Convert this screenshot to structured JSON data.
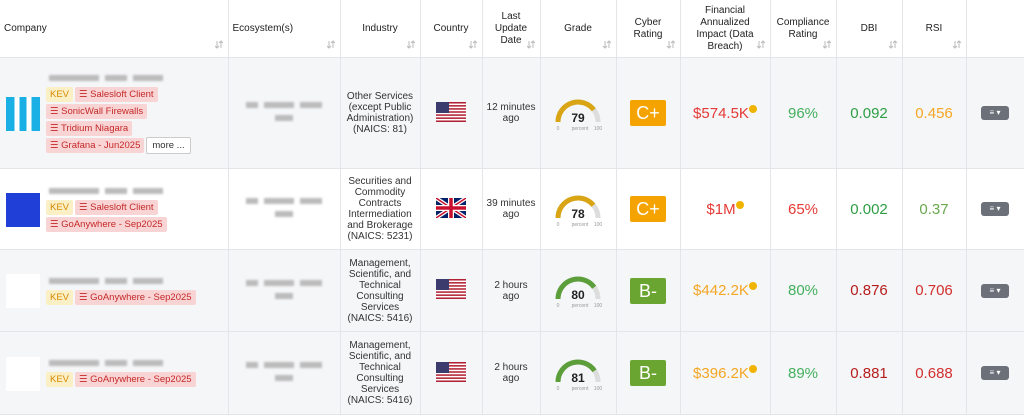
{
  "header": {
    "columns": [
      "Company",
      "Ecosystem(s)",
      "Industry",
      "Country",
      "Last Update Date",
      "Grade",
      "Cyber Rating",
      "Financial Annualized Impact (Data Breach)",
      "Compliance Rating",
      "DBI",
      "RSI"
    ]
  },
  "gauge": {
    "min": 0,
    "label": "percent",
    "max": 100
  },
  "table": {
    "rows": [
      {
        "kev": "KEV",
        "tags": [
          "Salesloft Client",
          "SonicWall Firewalls",
          "Tridium Niagara",
          "Grafana - Jun2025"
        ],
        "more": "more ...",
        "industry": "Other Services (except Public Administration) (NAICS: 81)",
        "updated": "12 minutes ago",
        "grade": 79,
        "grade_color": "#d9a514",
        "rating": "C+",
        "rating_color": "#f5a300",
        "impact": "$574.5K",
        "impact_color": "#e53935",
        "compliance": "96%",
        "compliance_color": "#43b05c",
        "dbi": "0.092",
        "dbi_color": "#2e9e44",
        "rsi": "0.456",
        "rsi_color": "#f5a623"
      },
      {
        "kev": "KEV",
        "tags": [
          "Salesloft Client",
          "GoAnywhere - Sep2025"
        ],
        "industry": "Securities and Commodity Contracts Intermediation and Brokerage (NAICS: 5231)",
        "updated": "39 minutes ago",
        "grade": 78,
        "grade_color": "#d9a514",
        "rating": "C+",
        "rating_color": "#f5a300",
        "impact": "$1M",
        "impact_color": "#e53935",
        "compliance": "65%",
        "compliance_color": "#e53935",
        "dbi": "0.002",
        "dbi_color": "#2e9e44",
        "rsi": "0.37",
        "rsi_color": "#6aa84f"
      },
      {
        "kev": "KEV",
        "tags": [
          "GoAnywhere - Sep2025"
        ],
        "industry": "Management, Scientific, and Technical Consulting Services (NAICS: 5416)",
        "updated": "2 hours ago",
        "grade": 80,
        "grade_color": "#5b9e3a",
        "rating": "B-",
        "rating_color": "#6aa531",
        "impact": "$442.2K",
        "impact_color": "#f5a623",
        "compliance": "80%",
        "compliance_color": "#43b05c",
        "dbi": "0.876",
        "dbi_color": "#b71c1c",
        "rsi": "0.706",
        "rsi_color": "#d32f2f"
      },
      {
        "kev": "KEV",
        "tags": [
          "GoAnywhere - Sep2025"
        ],
        "industry": "Management, Scientific, and Technical Consulting Services (NAICS: 5416)",
        "updated": "2 hours ago",
        "grade": 81,
        "grade_color": "#5b9e3a",
        "rating": "B-",
        "rating_color": "#6aa531",
        "impact": "$396.2K",
        "impact_color": "#f5a623",
        "compliance": "89%",
        "compliance_color": "#43b05c",
        "dbi": "0.881",
        "dbi_color": "#b71c1c",
        "rsi": "0.688",
        "rsi_color": "#d32f2f"
      }
    ]
  }
}
